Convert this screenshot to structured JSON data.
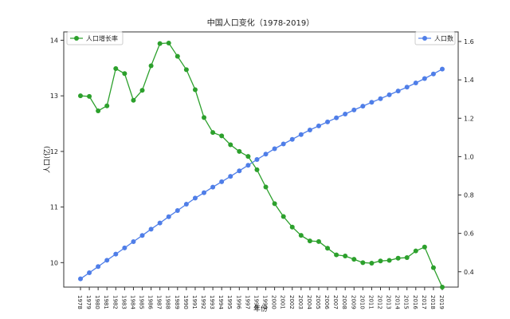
{
  "chart_data": {
    "type": "line",
    "title": "中国人口变化（1978-2019）",
    "xlabel": "年份",
    "ylabel_left": "人口(亿)",
    "ylabel_right": "",
    "x": [
      1978,
      1979,
      1980,
      1981,
      1982,
      1983,
      1984,
      1985,
      1986,
      1987,
      1988,
      1989,
      1990,
      1991,
      1992,
      1993,
      1994,
      1995,
      1996,
      1997,
      1998,
      1999,
      2000,
      2001,
      2002,
      2003,
      2004,
      2005,
      2006,
      2007,
      2008,
      2009,
      2010,
      2011,
      2012,
      2013,
      2014,
      2015,
      2016,
      2017,
      2018,
      2019
    ],
    "ylim_left": [
      9.56,
      14.15
    ],
    "ylim_right": [
      0.32,
      1.65
    ],
    "yticks_left": [
      10,
      11,
      12,
      13,
      14
    ],
    "yticks_right": [
      0.4,
      0.6,
      0.8,
      1.0,
      1.2,
      1.4,
      1.6
    ],
    "grid": false,
    "series": [
      {
        "name": "人口增长率",
        "axis": "left",
        "color": "#2ca02c",
        "legend_position": "top-left",
        "values": [
          13.0,
          12.99,
          12.73,
          12.82,
          13.49,
          13.4,
          12.92,
          13.1,
          13.54,
          13.94,
          13.95,
          13.71,
          13.47,
          13.11,
          12.61,
          12.34,
          12.28,
          12.12,
          12.0,
          11.91,
          11.67,
          11.36,
          11.06,
          10.83,
          10.64,
          10.49,
          10.39,
          10.38,
          10.26,
          10.14,
          10.12,
          10.06,
          10.0,
          9.99,
          10.03,
          10.04,
          10.08,
          10.09,
          10.21,
          10.28,
          9.91,
          9.56
        ]
      },
      {
        "name": "人口数",
        "axis": "right",
        "color": "#4f7ee8",
        "legend_position": "top-right",
        "values": [
          0.363,
          0.395,
          0.427,
          0.46,
          0.492,
          0.524,
          0.557,
          0.589,
          0.622,
          0.654,
          0.687,
          0.719,
          0.752,
          0.784,
          0.812,
          0.841,
          0.869,
          0.897,
          0.926,
          0.955,
          0.985,
          1.013,
          1.041,
          1.066,
          1.09,
          1.115,
          1.139,
          1.16,
          1.181,
          1.202,
          1.222,
          1.243,
          1.263,
          1.283,
          1.302,
          1.322,
          1.342,
          1.362,
          1.384,
          1.407,
          1.431,
          1.456
        ]
      }
    ]
  }
}
